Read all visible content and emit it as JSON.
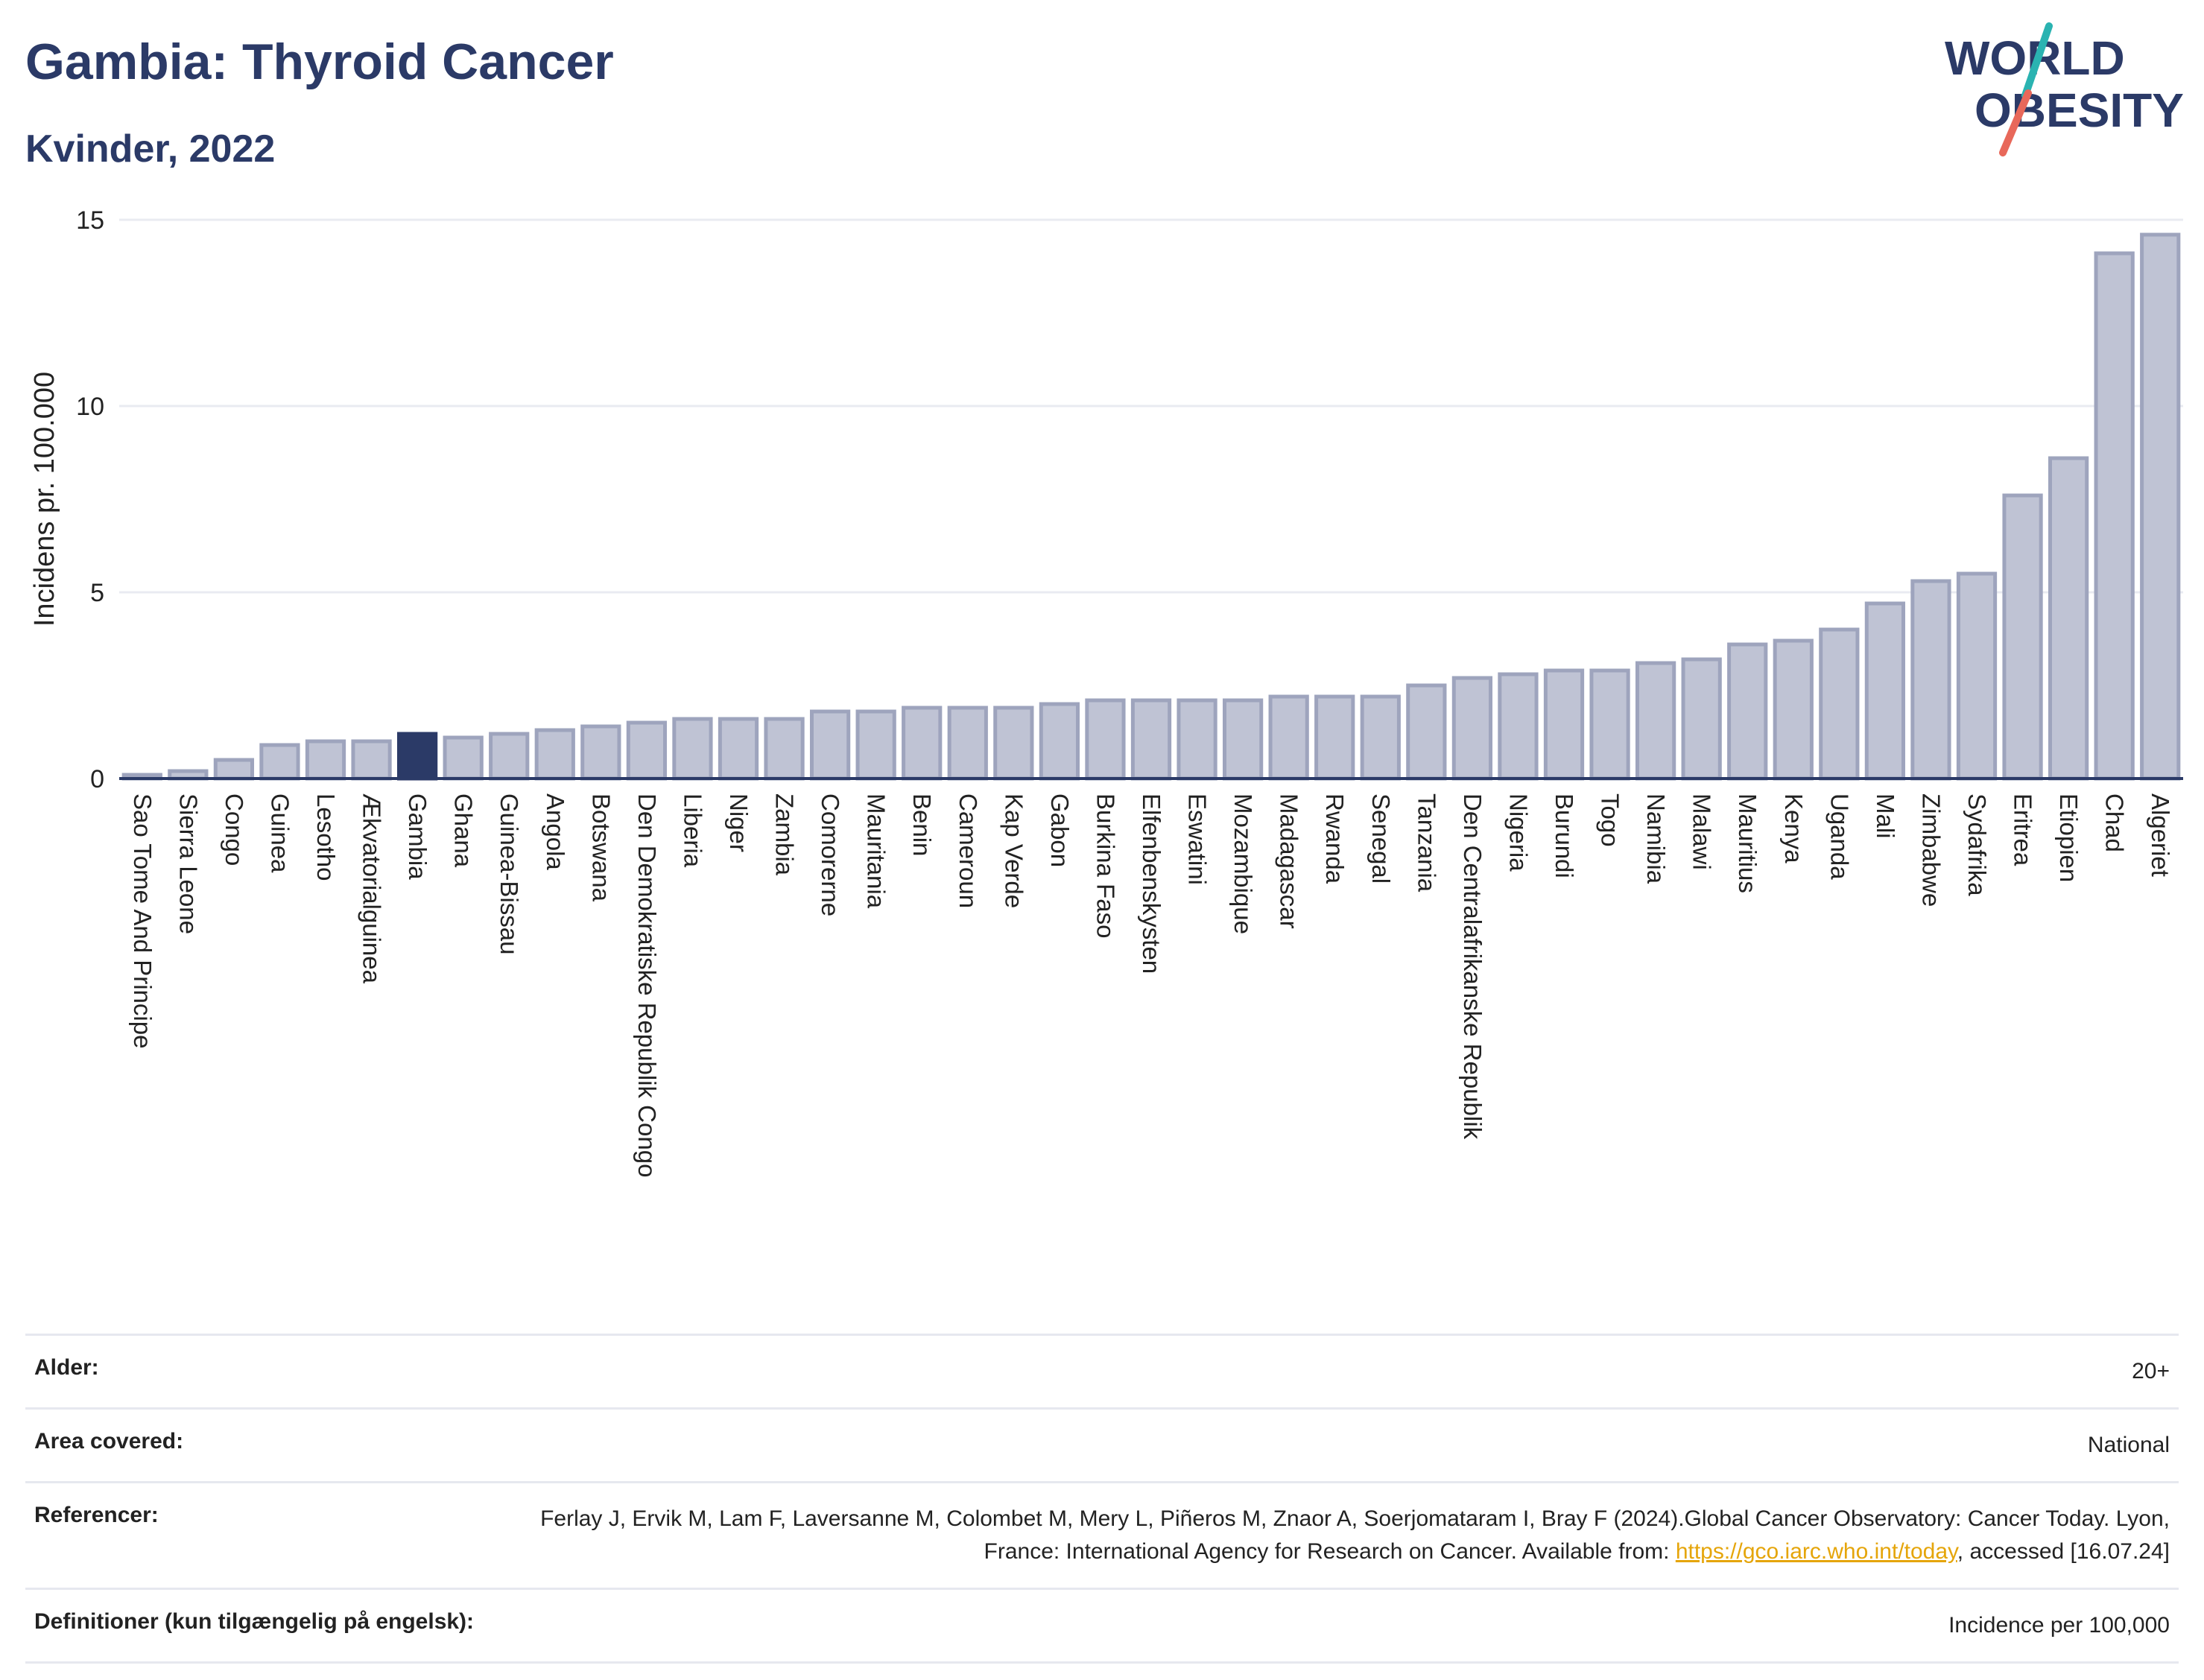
{
  "header": {
    "title": "Gambia: Thyroid Cancer",
    "subtitle": "Kvinder, 2022",
    "logo_line1": "WORLD",
    "logo_line2": "OBESITY"
  },
  "colors": {
    "bar": "#bfc3d4",
    "bar_border": "#9ea4bd",
    "highlight": "#2b3a67",
    "title": "#2b3a67",
    "link": "#e5a50a"
  },
  "chart_data": {
    "type": "bar",
    "ylabel": "Incidens pr. 100.000",
    "ylim": [
      0,
      15
    ],
    "yticks": [
      0,
      5,
      10,
      15
    ],
    "grid": true,
    "highlight": "Gambia",
    "categories": [
      "Sao Tome And Principe",
      "Sierra Leone",
      "Congo",
      "Guinea",
      "Lesotho",
      "Ækvatorialguinea",
      "Gambia",
      "Ghana",
      "Guinea-Bissau",
      "Angola",
      "Botswana",
      "Den Demokratiske Republik Congo",
      "Liberia",
      "Niger",
      "Zambia",
      "Comorerne",
      "Mauritania",
      "Benin",
      "Cameroun",
      "Kap Verde",
      "Gabon",
      "Burkina Faso",
      "Elfenbenskysten",
      "Eswatini",
      "Mozambique",
      "Madagascar",
      "Rwanda",
      "Senegal",
      "Tanzania",
      "Den Centralafrikanske Republik",
      "Nigeria",
      "Burundi",
      "Togo",
      "Namibia",
      "Malawi",
      "Mauritius",
      "Kenya",
      "Uganda",
      "Mali",
      "Zimbabwe",
      "Sydafrika",
      "Eritrea",
      "Etiopien",
      "Chad",
      "Algeriet"
    ],
    "values": [
      0.1,
      0.2,
      0.5,
      0.9,
      1.0,
      1.0,
      1.2,
      1.1,
      1.2,
      1.3,
      1.4,
      1.5,
      1.6,
      1.6,
      1.6,
      1.8,
      1.8,
      1.9,
      1.9,
      1.9,
      2.0,
      2.1,
      2.1,
      2.1,
      2.1,
      2.2,
      2.2,
      2.2,
      2.5,
      2.7,
      2.8,
      2.9,
      2.9,
      3.1,
      3.2,
      3.6,
      3.7,
      4.0,
      4.7,
      5.3,
      5.5,
      7.6,
      8.6,
      14.1,
      14.6
    ]
  },
  "meta": [
    {
      "label": "Alder:",
      "value": "20+"
    },
    {
      "label": "Area covered:",
      "value": "National"
    },
    {
      "label": "Referencer:",
      "value_pre": "Ferlay J, Ervik M, Lam F, Laversanne M, Colombet M, Mery L, Piñeros M, Znaor A, Soerjomataram I, Bray F (2024).Global Cancer Observatory: Cancer Today. Lyon, France: International Agency for Research on Cancer. Available from: ",
      "link": "https://gco.iarc.who.int/today",
      "value_post": ", accessed [16.07.24]"
    },
    {
      "label": "Definitioner (kun tilgængelig på engelsk):",
      "value": "Incidence per 100,000"
    }
  ]
}
